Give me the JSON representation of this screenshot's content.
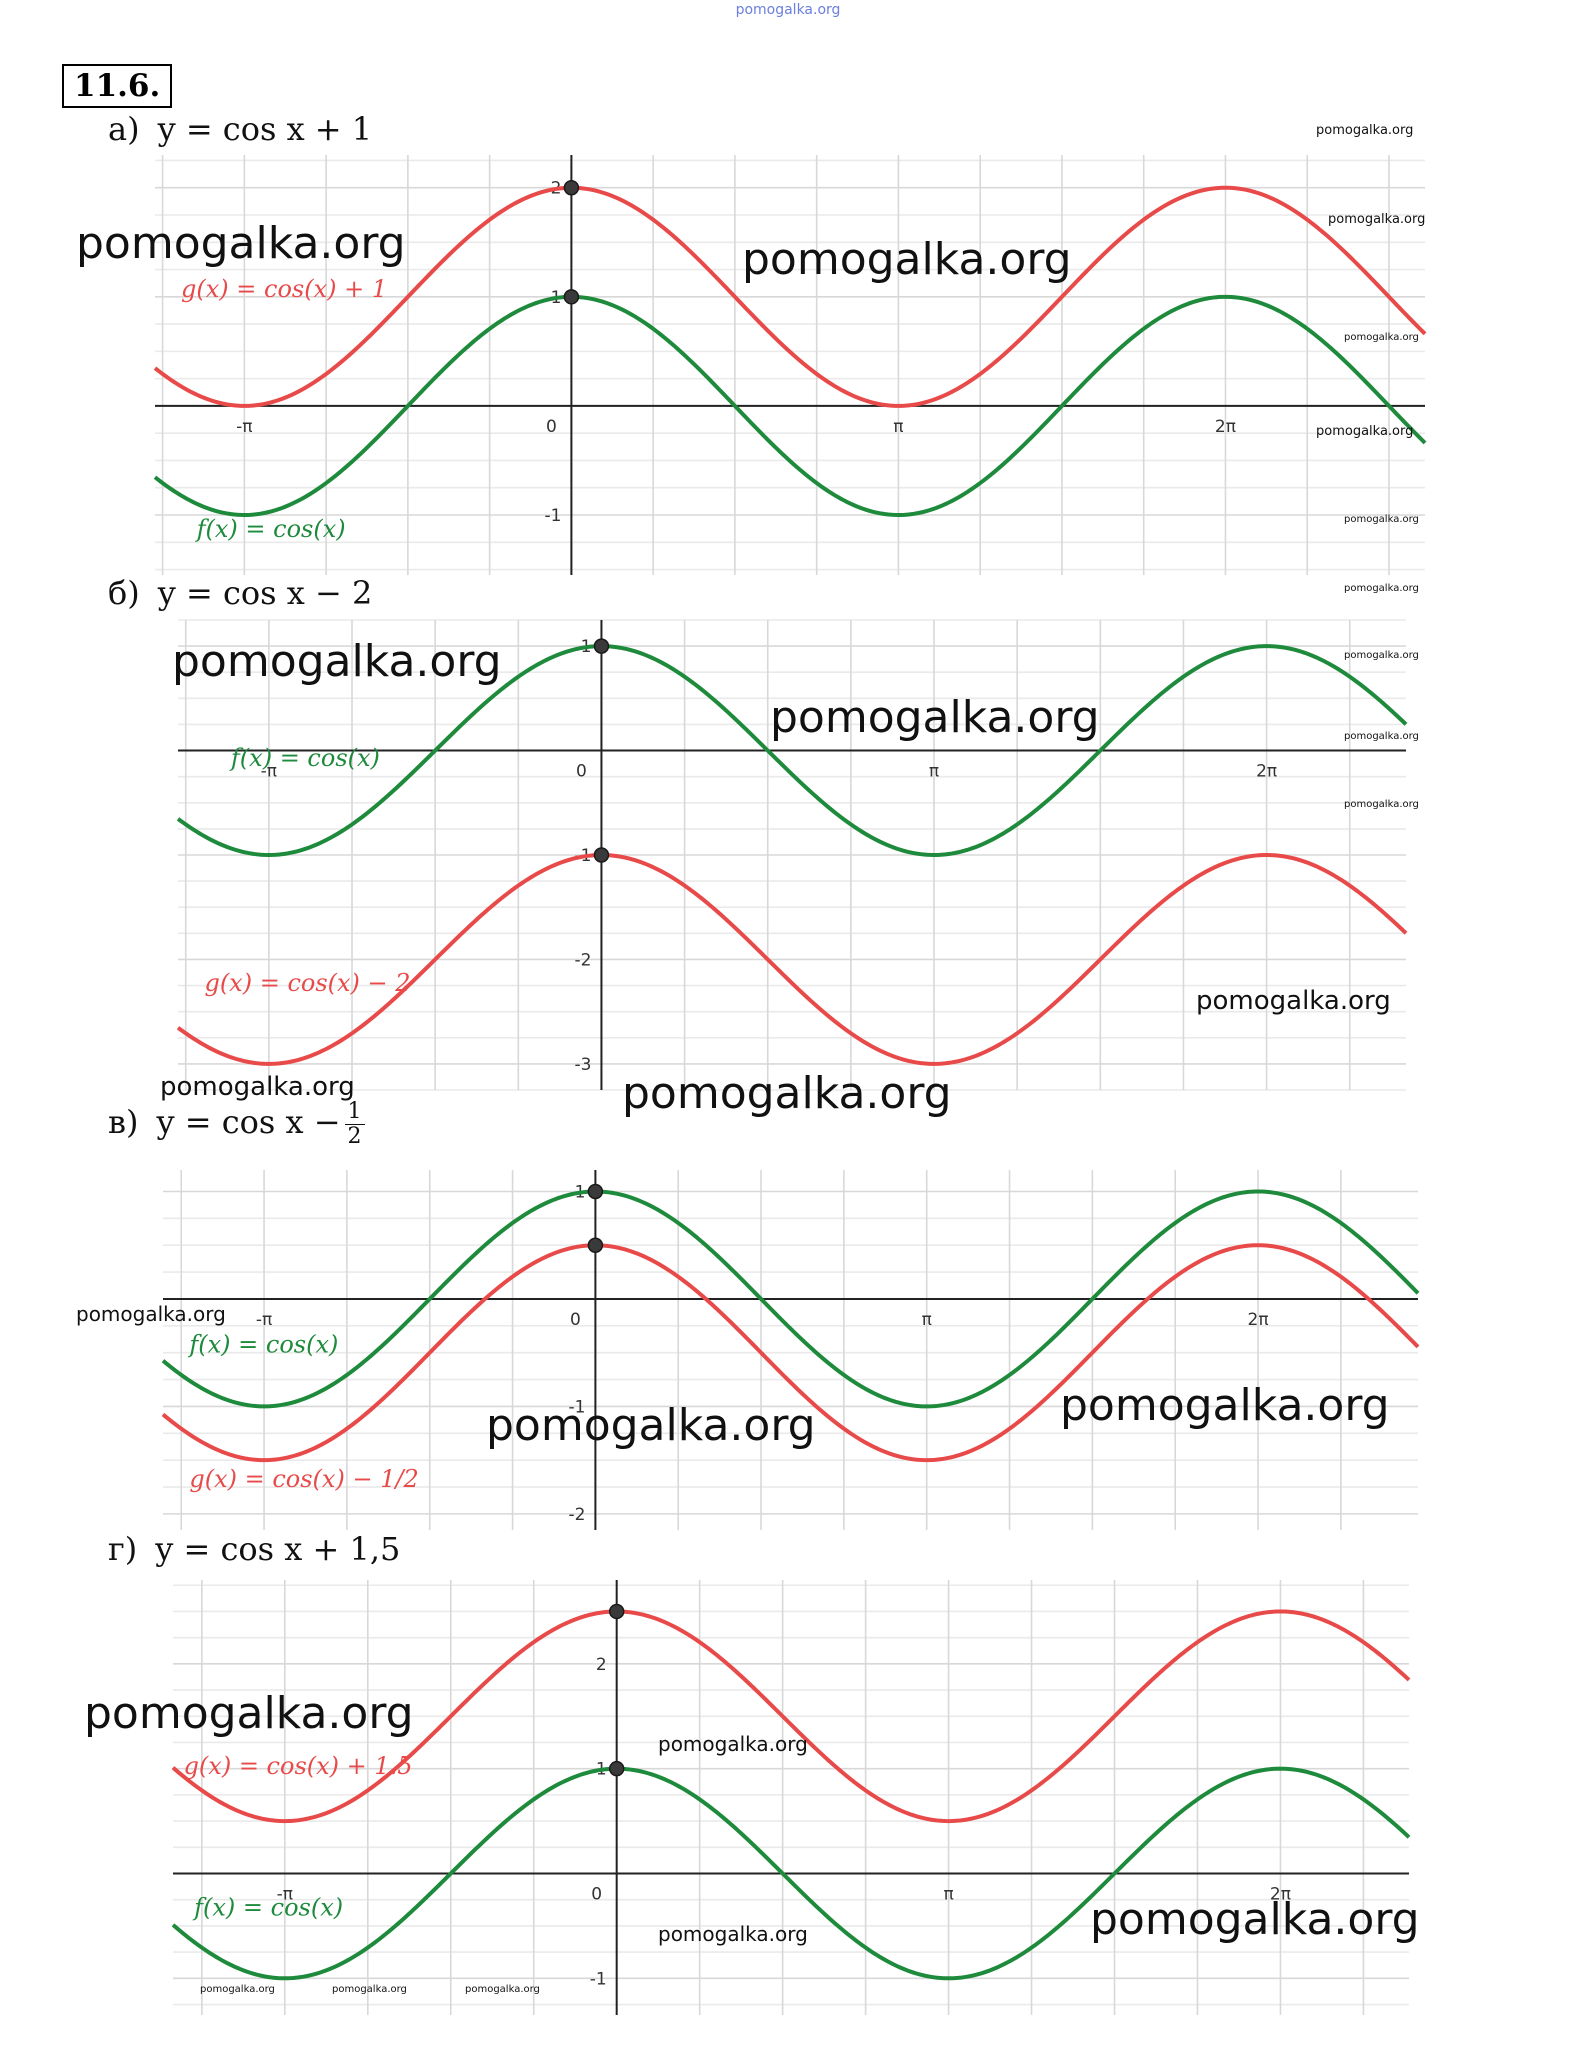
{
  "header": {
    "site": "pomogalka.org",
    "problem_number": "11.6."
  },
  "colors": {
    "green": "#1e8a3c",
    "red": "#e84a4a",
    "grid": "#d8d8d8",
    "axis": "#222222"
  },
  "watermark": "pomogalka.org",
  "chart_data": [
    {
      "id": "a",
      "type": "line",
      "part_label": "а)",
      "equation": "y = cos x + 1",
      "x_range": [
        -4.0,
        8.2
      ],
      "y_range": [
        -1.55,
        2.3
      ],
      "x_ticks": [
        {
          "v": -3.14159,
          "label": "-π"
        },
        {
          "v": 0,
          "label": "0"
        },
        {
          "v": 3.14159,
          "label": "π"
        },
        {
          "v": 6.28319,
          "label": "2π"
        }
      ],
      "y_ticks": [
        {
          "v": 2,
          "label": "2"
        },
        {
          "v": 1,
          "label": "1"
        },
        {
          "v": -1,
          "label": "-1"
        }
      ],
      "series": [
        {
          "name": "g(x) = cos(x) + 1",
          "color": "red",
          "shift": 1
        },
        {
          "name": "f(x) = cos(x)",
          "color": "green",
          "shift": 0
        }
      ],
      "points": [
        {
          "x": 0,
          "y": 2
        },
        {
          "x": 0,
          "y": 1
        }
      ]
    },
    {
      "id": "b",
      "type": "line",
      "part_label": "б)",
      "equation": "y = cos x − 2",
      "x_range": [
        -4.0,
        7.6
      ],
      "y_range": [
        -3.25,
        1.25
      ],
      "x_ticks": [
        {
          "v": -3.14159,
          "label": "-π"
        },
        {
          "v": 0,
          "label": "0"
        },
        {
          "v": 3.14159,
          "label": "π"
        },
        {
          "v": 6.28319,
          "label": "2π"
        }
      ],
      "y_ticks": [
        {
          "v": 1,
          "label": "1"
        },
        {
          "v": -1,
          "label": "-1"
        },
        {
          "v": -2,
          "label": "-2"
        },
        {
          "v": -3,
          "label": "-3"
        }
      ],
      "series": [
        {
          "name": "f(x) = cos(x)",
          "color": "green",
          "shift": 0
        },
        {
          "name": "g(x) = cos(x) − 2",
          "color": "red",
          "shift": -2
        }
      ],
      "points": [
        {
          "x": 0,
          "y": 1
        },
        {
          "x": 0,
          "y": -1
        }
      ]
    },
    {
      "id": "c",
      "type": "line",
      "part_label": "в)",
      "equation_prefix": "y = cos x −",
      "equation_frac_num": "1",
      "equation_frac_den": "2",
      "x_range": [
        -4.1,
        7.8
      ],
      "y_range": [
        -2.15,
        1.2
      ],
      "x_ticks": [
        {
          "v": -3.14159,
          "label": "-π"
        },
        {
          "v": 0,
          "label": "0"
        },
        {
          "v": 3.14159,
          "label": "π"
        },
        {
          "v": 6.28319,
          "label": "2π"
        }
      ],
      "y_ticks": [
        {
          "v": 1,
          "label": "1"
        },
        {
          "v": -1,
          "label": "-1"
        },
        {
          "v": -2,
          "label": "-2"
        }
      ],
      "series": [
        {
          "name": "f(x) = cos(x)",
          "color": "green",
          "shift": 0
        },
        {
          "name": "g(x) = cos(x) − 1/2",
          "color": "red",
          "shift": -0.5
        }
      ],
      "points": [
        {
          "x": 0,
          "y": 1
        },
        {
          "x": 0,
          "y": 0.5
        }
      ]
    },
    {
      "id": "d",
      "type": "line",
      "part_label": "г)",
      "equation": "y = cos x + 1,5",
      "x_range": [
        -4.2,
        7.5
      ],
      "y_range": [
        -1.35,
        2.8
      ],
      "x_ticks": [
        {
          "v": -3.14159,
          "label": "-π"
        },
        {
          "v": 0,
          "label": "0"
        },
        {
          "v": 3.14159,
          "label": "π"
        },
        {
          "v": 6.28319,
          "label": "2π"
        }
      ],
      "y_ticks": [
        {
          "v": 2,
          "label": "2"
        },
        {
          "v": 1,
          "label": "1"
        },
        {
          "v": -1,
          "label": "-1"
        }
      ],
      "series": [
        {
          "name": "g(x) = cos(x) + 1.5",
          "color": "red",
          "shift": 1.5
        },
        {
          "name": "f(x) = cos(x)",
          "color": "green",
          "shift": 0
        }
      ],
      "points": [
        {
          "x": 0,
          "y": 2.5
        },
        {
          "x": 0,
          "y": 1
        }
      ]
    }
  ]
}
